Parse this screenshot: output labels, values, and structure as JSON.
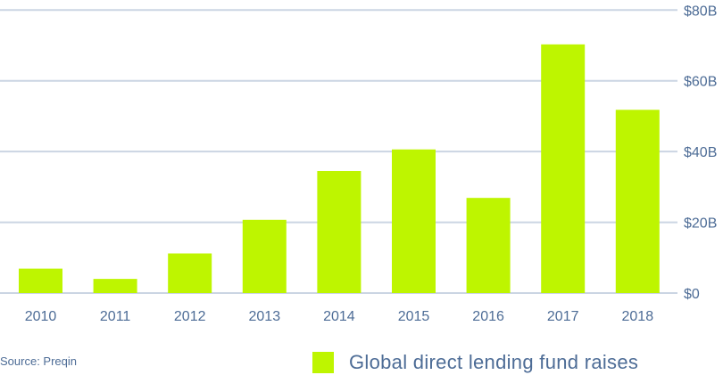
{
  "chart_data": {
    "type": "bar",
    "categories": [
      "2010",
      "2011",
      "2012",
      "2013",
      "2014",
      "2015",
      "2016",
      "2017",
      "2018"
    ],
    "series": [
      {
        "name": "Global direct lending fund raises",
        "values": [
          6.9,
          4.0,
          11.2,
          20.7,
          34.5,
          40.6,
          26.9,
          70.3,
          51.8
        ]
      }
    ],
    "ylim": [
      0,
      80
    ],
    "yticks": [
      0,
      20,
      40,
      60,
      80
    ],
    "ytick_labels": [
      "$0",
      "$20B",
      "$40B",
      "$60B",
      "$80B"
    ],
    "y_axis_side": "right",
    "grid": true,
    "legend": "bottom-right",
    "bar_color": "#bef500",
    "text_color": "#4d6c96",
    "grid_color": "#cbd5e3"
  },
  "source": "Source: Preqin"
}
